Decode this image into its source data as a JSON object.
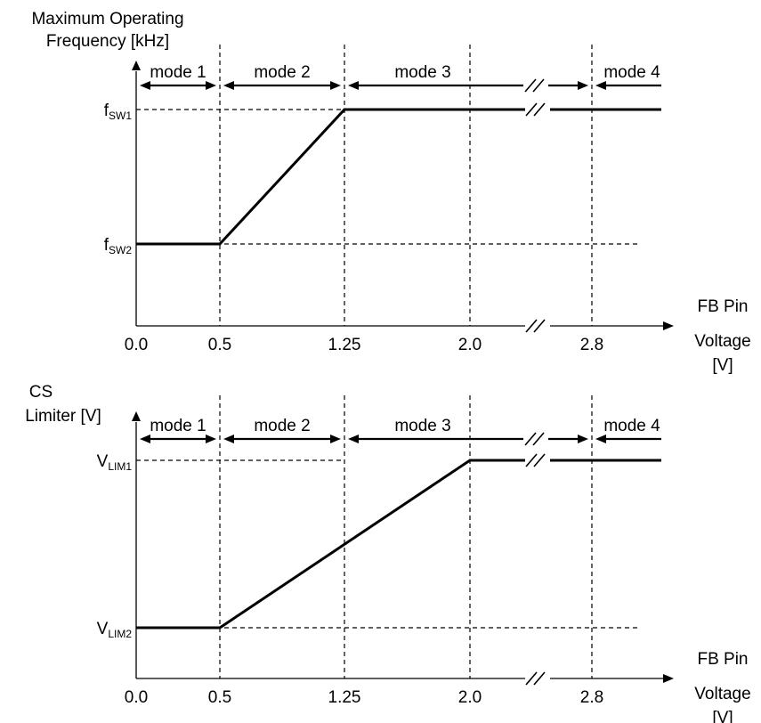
{
  "chart_data": [
    {
      "type": "line",
      "ylabel_lines": [
        "Maximum Operating",
        "Frequency [kHz]"
      ],
      "xlabel_lines": [
        "FB Pin",
        "Voltage",
        "[V]"
      ],
      "x_ticks": [
        "0.0",
        "0.5",
        "1.25",
        "2.0",
        "2.8"
      ],
      "x_tick_values": [
        0.0,
        0.5,
        1.25,
        2.0,
        2.8
      ],
      "y_levels": [
        {
          "base": "f",
          "sub": "SW1",
          "level": "high"
        },
        {
          "base": "f",
          "sub": "SW2",
          "level": "low"
        }
      ],
      "modes": [
        {
          "label": "mode 1",
          "from": 0.0,
          "to": 0.5
        },
        {
          "label": "mode 2",
          "from": 0.5,
          "to": 1.25
        },
        {
          "label": "mode 3",
          "from": 1.25,
          "to": 2.8
        },
        {
          "label": "mode 4",
          "from": 2.8,
          "to": null
        }
      ],
      "series": [
        {
          "points": [
            [
              0.0,
              "low"
            ],
            [
              0.5,
              "low"
            ],
            [
              1.25,
              "high"
            ],
            [
              3.2,
              "high"
            ]
          ]
        }
      ],
      "axis_break": true
    },
    {
      "type": "line",
      "ylabel_lines": [
        "CS",
        "Limiter [V]"
      ],
      "xlabel_lines": [
        "FB Pin",
        "Voltage",
        "[V]"
      ],
      "x_ticks": [
        "0.0",
        "0.5",
        "1.25",
        "2.0",
        "2.8"
      ],
      "x_tick_values": [
        0.0,
        0.5,
        1.25,
        2.0,
        2.8
      ],
      "y_levels": [
        {
          "base": "V",
          "sub": "LIM1",
          "level": "high"
        },
        {
          "base": "V",
          "sub": "LIM2",
          "level": "low"
        }
      ],
      "modes": [
        {
          "label": "mode 1",
          "from": 0.0,
          "to": 0.5
        },
        {
          "label": "mode 2",
          "from": 0.5,
          "to": 1.25
        },
        {
          "label": "mode 3",
          "from": 1.25,
          "to": 2.8
        },
        {
          "label": "mode 4",
          "from": 2.8,
          "to": null
        }
      ],
      "series": [
        {
          "points": [
            [
              0.0,
              "low"
            ],
            [
              0.5,
              "low"
            ],
            [
              2.0,
              "high"
            ],
            [
              3.2,
              "high"
            ]
          ]
        }
      ],
      "axis_break": true
    }
  ]
}
